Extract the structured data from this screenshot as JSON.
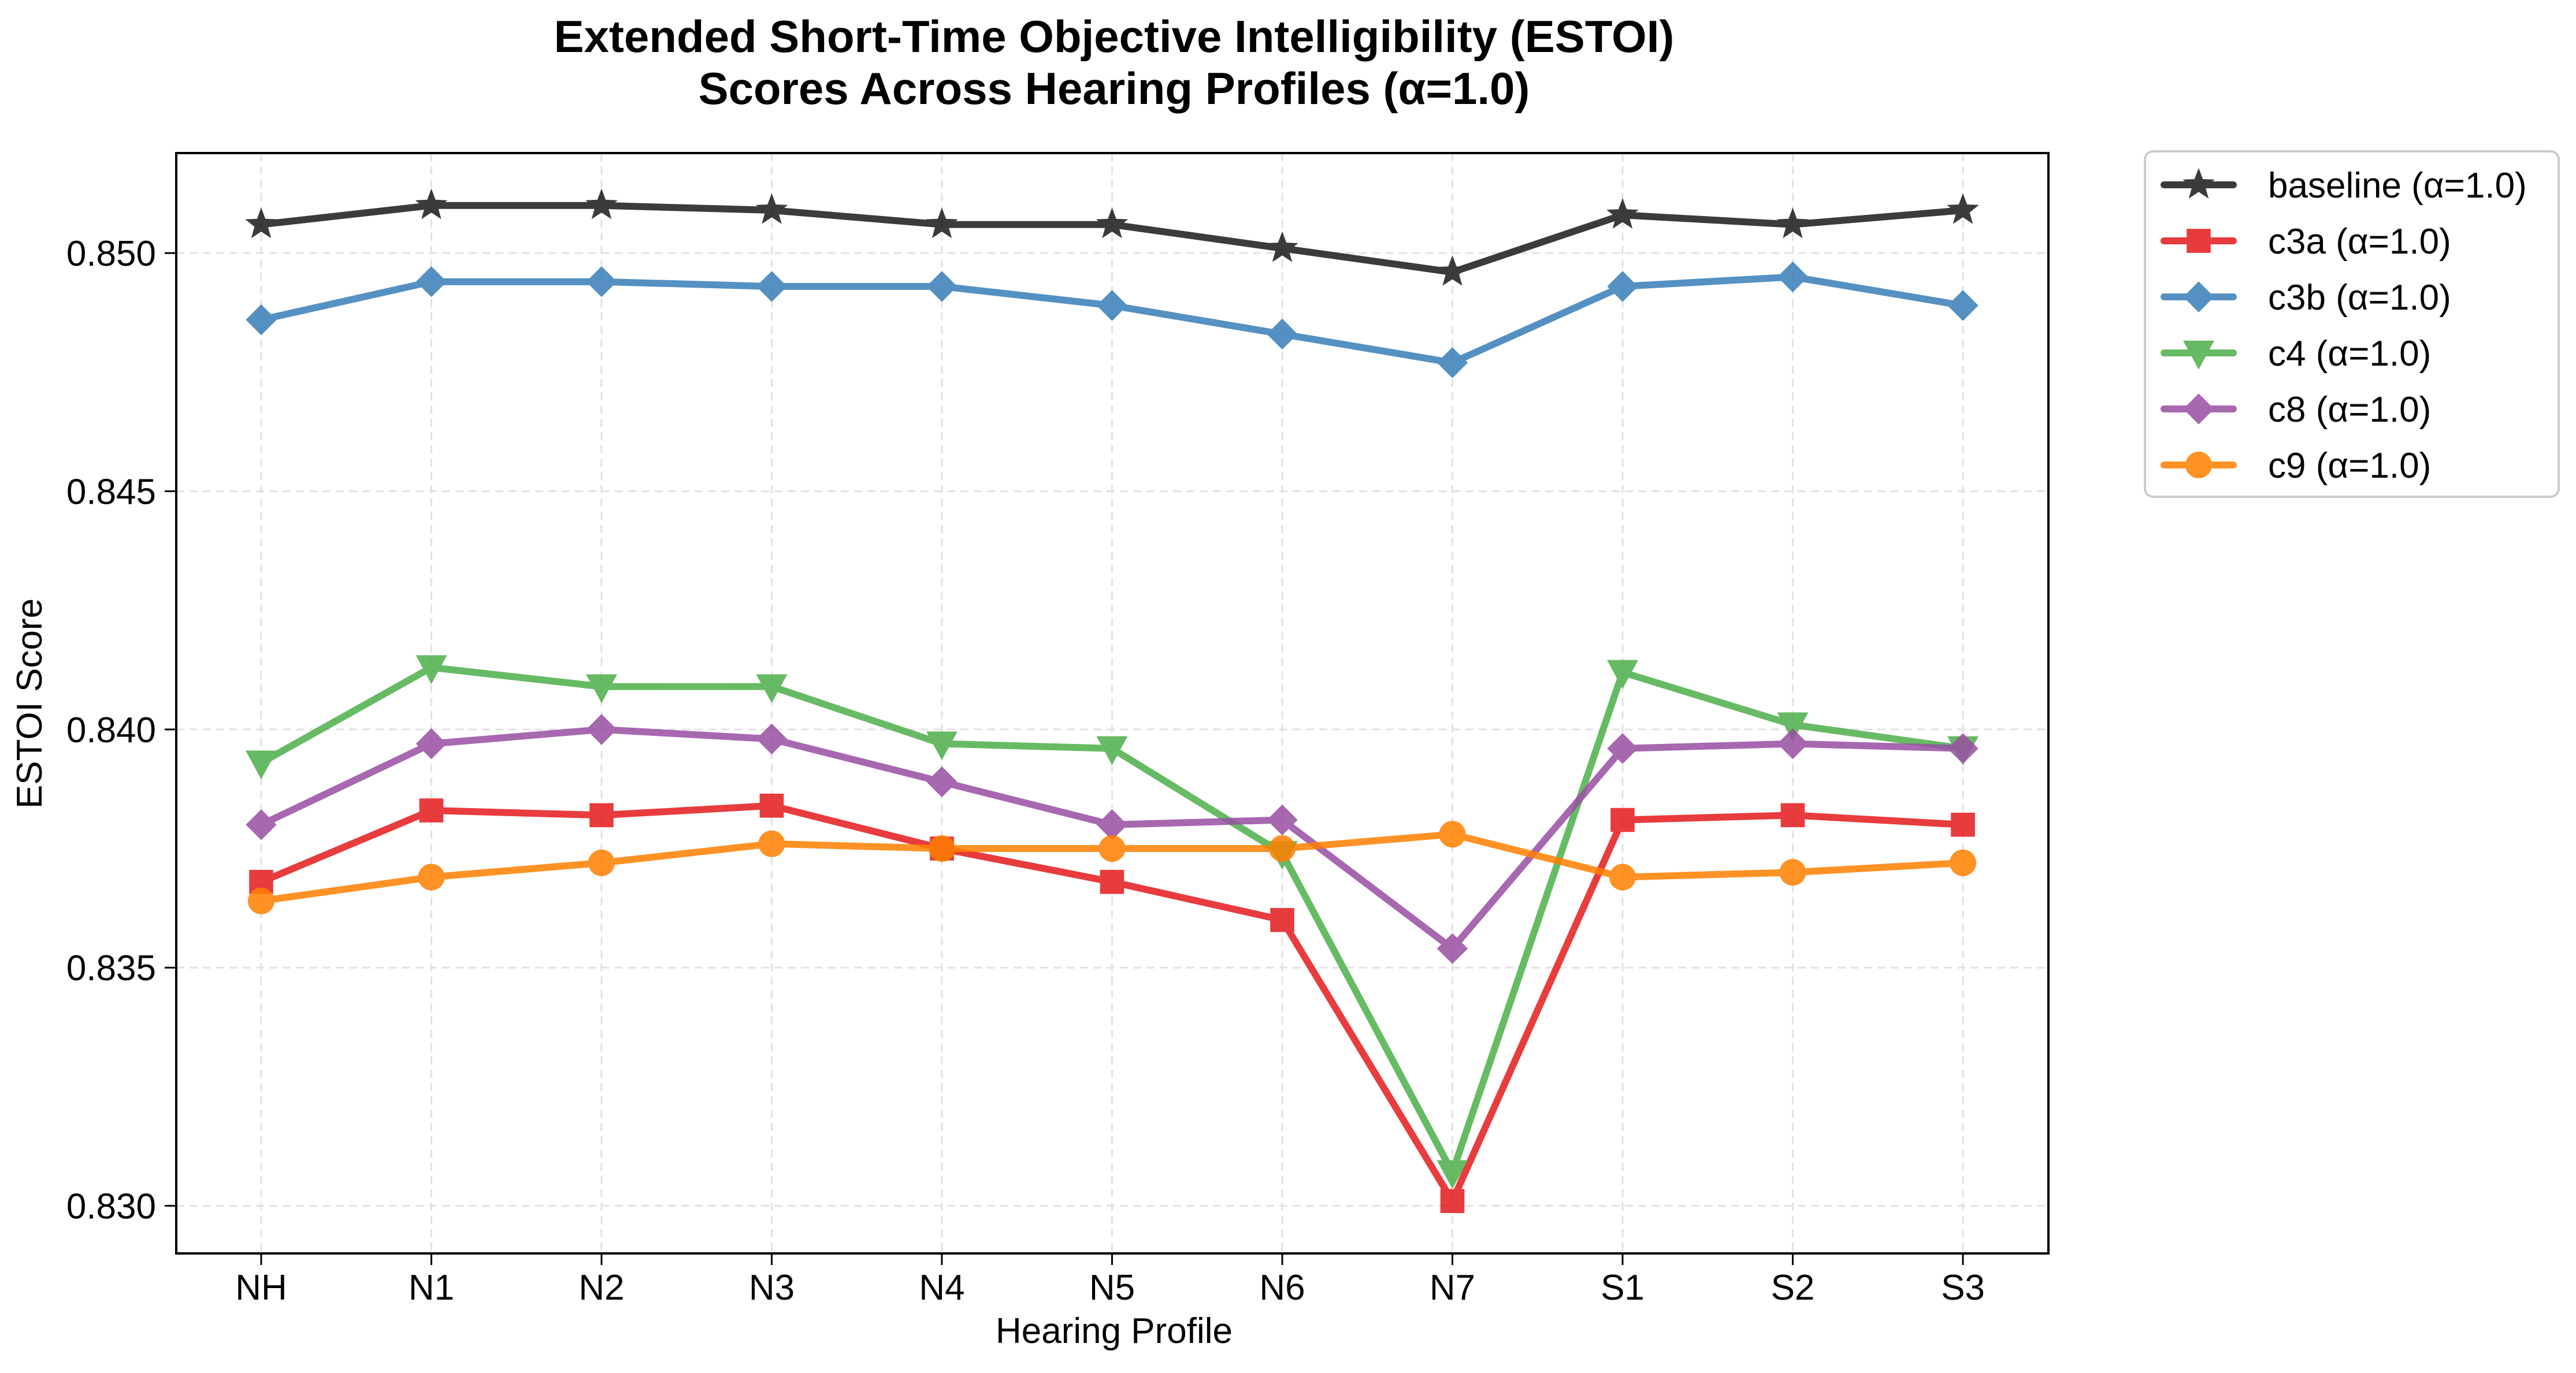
{
  "chart_data": {
    "type": "line",
    "title": "Extended Short-Time Objective Intelligibility (ESTOI)",
    "subtitle": "Scores Across Hearing Profiles (α=1.0)",
    "xlabel": "Hearing Profile",
    "ylabel": "ESTOI Score",
    "categories": [
      "NH",
      "N1",
      "N2",
      "N3",
      "N4",
      "N5",
      "N6",
      "N7",
      "S1",
      "S2",
      "S3"
    ],
    "ylim": [
      0.829,
      0.8521
    ],
    "yticks": [
      0.83,
      0.835,
      0.84,
      0.845,
      0.85
    ],
    "ytick_labels": [
      "0.830",
      "0.835",
      "0.840",
      "0.845",
      "0.850"
    ],
    "grid": true,
    "legend_position": "outside-top-right",
    "series": [
      {
        "name": "baseline (α=1.0)",
        "color": "#1a1a1a",
        "marker": "star",
        "values": [
          0.8506,
          0.851,
          0.851,
          0.8509,
          0.8506,
          0.8506,
          0.8501,
          0.8496,
          0.8508,
          0.8506,
          0.8509
        ]
      },
      {
        "name": "c3a (α=1.0)",
        "color": "#e41a1c",
        "marker": "square",
        "values": [
          0.8368,
          0.8383,
          0.8382,
          0.8384,
          0.8375,
          0.8368,
          0.836,
          0.8301,
          0.8381,
          0.8382,
          0.838
        ]
      },
      {
        "name": "c3b (α=1.0)",
        "color": "#377eb8",
        "marker": "diamond",
        "values": [
          0.8486,
          0.8494,
          0.8494,
          0.8493,
          0.8493,
          0.8489,
          0.8483,
          0.8477,
          0.8493,
          0.8495,
          0.8489
        ]
      },
      {
        "name": "c4 (α=1.0)",
        "color": "#4daf4a",
        "marker": "triangle-down",
        "values": [
          0.8393,
          0.8413,
          0.8409,
          0.8409,
          0.8397,
          0.8396,
          0.8374,
          0.8307,
          0.8412,
          0.8401,
          0.8396
        ]
      },
      {
        "name": "c8 (α=1.0)",
        "color": "#984ea3",
        "marker": "diamond",
        "values": [
          0.838,
          0.8397,
          0.84,
          0.8398,
          0.8389,
          0.838,
          0.8381,
          0.8354,
          0.8396,
          0.8397,
          0.8396
        ]
      },
      {
        "name": "c9 (α=1.0)",
        "color": "#ff7f00",
        "marker": "circle",
        "values": [
          0.8364,
          0.8369,
          0.8372,
          0.8376,
          0.8375,
          0.8375,
          0.8375,
          0.8378,
          0.8369,
          0.837,
          0.8372
        ]
      }
    ]
  }
}
